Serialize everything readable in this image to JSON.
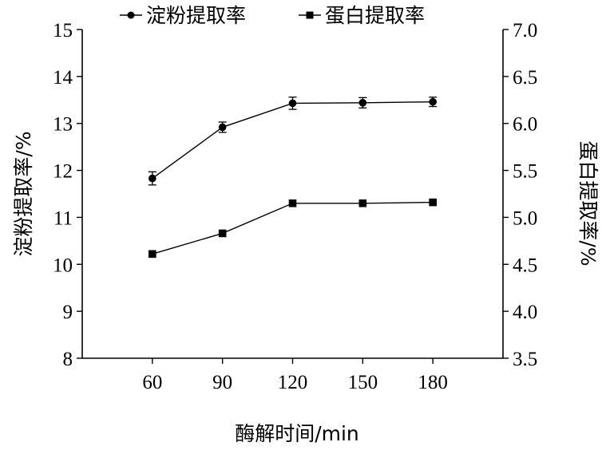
{
  "chart_data": {
    "type": "line",
    "x": [
      60,
      90,
      120,
      150,
      180
    ],
    "xlabel": "酶解时间/min",
    "xlim": [
      30,
      210
    ],
    "series": [
      {
        "name": "淀粉提取率",
        "axis": "left",
        "marker": "circle",
        "values": [
          11.83,
          12.92,
          13.43,
          13.44,
          13.46
        ],
        "errors": [
          0.14,
          0.11,
          0.13,
          0.11,
          0.1
        ]
      },
      {
        "name": "蛋白提取率",
        "axis": "right",
        "marker": "square",
        "values": [
          4.61,
          4.83,
          5.15,
          5.15,
          5.16
        ],
        "errors": [
          0,
          0,
          0,
          0,
          0
        ]
      }
    ],
    "y_left": {
      "label": "淀粉提取率/%",
      "lim": [
        8,
        15
      ],
      "ticks": [
        "8",
        "9",
        "10",
        "11",
        "12",
        "13",
        "14",
        "15"
      ]
    },
    "y_right": {
      "label": "蛋白提取率/%",
      "lim": [
        3.5,
        7.0
      ],
      "ticks": [
        "3.5",
        "4.0",
        "4.5",
        "5.0",
        "5.5",
        "6.0",
        "6.5",
        "7.0"
      ]
    },
    "x_ticks": [
      "60",
      "90",
      "120",
      "150",
      "180"
    ],
    "legend_position": "top-center",
    "grid": false
  }
}
